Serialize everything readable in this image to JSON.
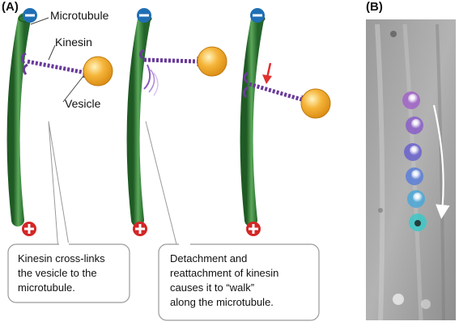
{
  "panel_a": {
    "label": "(A)"
  },
  "panel_b": {
    "label": "(B)"
  },
  "labels": {
    "microtubule": "Microtubule",
    "kinesin": "Kinesin",
    "vesicle": "Vesicle"
  },
  "signs": {
    "minus": "−",
    "plus": "+"
  },
  "callouts": [
    {
      "lines": [
        "Kinesin cross-links",
        "the vesicle to the",
        "microtubule."
      ]
    },
    {
      "lines": [
        "Detachment and",
        "reattachment of kinesin",
        "causes it to “walk”",
        "along the microtubule."
      ]
    }
  ],
  "colors": {
    "microtubule": "#3f8a3f",
    "kinesin": "#6a3a9a",
    "vesicle": "#f0a820",
    "minus_badge": "#1f6fb5",
    "plus_badge": "#d32626",
    "arrow": "#e03030"
  },
  "icons": [
    "minus-badge-icon",
    "plus-badge-icon",
    "down-arrow-icon",
    "motion-arrow-icon"
  ]
}
